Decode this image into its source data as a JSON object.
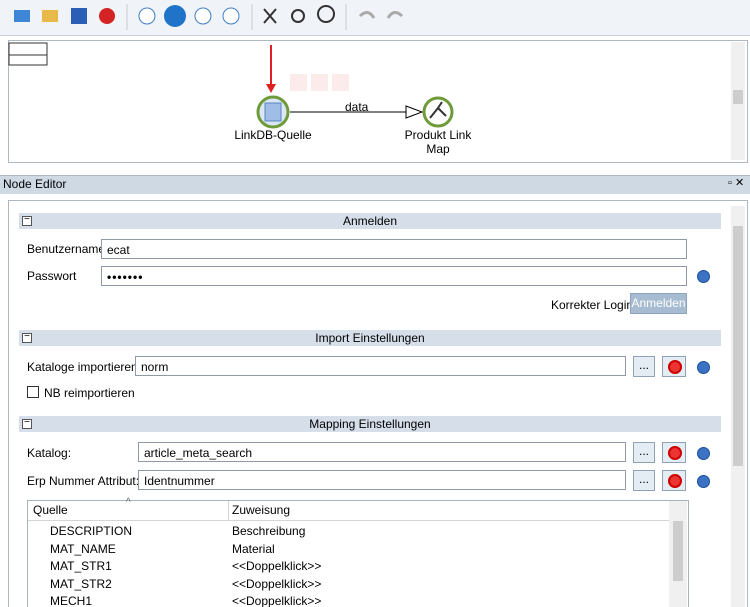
{
  "graph": {
    "edge_label": "data",
    "nodes": [
      {
        "label": "LinkDB-Quelle"
      },
      {
        "label": "Produkt Link Map"
      }
    ]
  },
  "panel": {
    "title": "Node Editor"
  },
  "login": {
    "header": "Anmelden",
    "username_label": "Benutzername",
    "username": "ecat",
    "password_label": "Passwort",
    "password": "•••••••",
    "status": "Korrekter Login",
    "button": "Anmelden"
  },
  "import": {
    "header": "Import Einstellungen",
    "catalogs_label": "Kataloge importieren:",
    "catalogs": "norm",
    "browse": "...",
    "checkbox": "NB reimportieren"
  },
  "mapping": {
    "header": "Mapping Einstellungen",
    "catalog_label": "Katalog:",
    "catalog": "article_meta_search",
    "erp_label": "Erp Nummer Attribut:",
    "erp": "Identnummer",
    "table": {
      "columns": [
        "Quelle",
        "Zuweisung"
      ],
      "rows": [
        [
          "DESCRIPTION",
          "Beschreibung"
        ],
        [
          "MAT_NAME",
          "Material"
        ],
        [
          "MAT_STR1",
          "<<Doppelklick>>"
        ],
        [
          "MAT_STR2",
          "<<Doppelklick>>"
        ],
        [
          "MECH1",
          "<<Doppelklick>>"
        ]
      ]
    }
  }
}
